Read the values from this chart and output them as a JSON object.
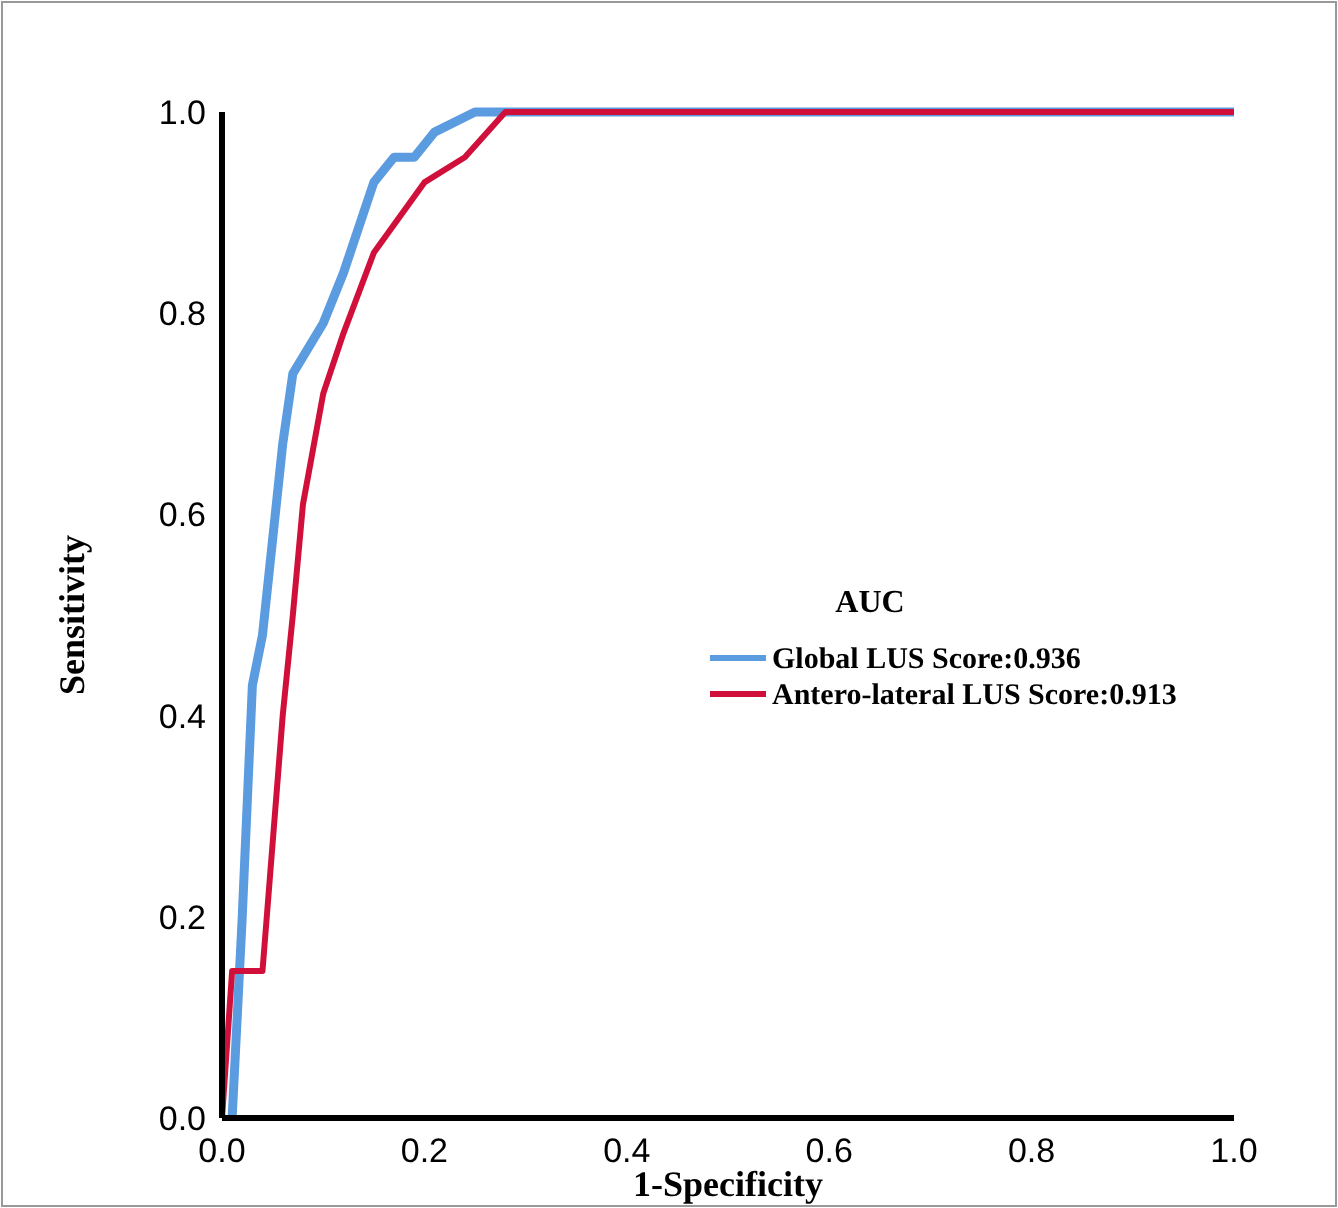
{
  "chart_data": {
    "type": "line",
    "xlabel": "1-Specificity",
    "ylabel": "Sensitivity",
    "legend_title": "AUC",
    "legend": "right",
    "xlim": [
      0,
      1
    ],
    "ylim": [
      0,
      1
    ],
    "xticks": [
      {
        "value": 0,
        "label": "0.0"
      },
      {
        "value": 0.2,
        "label": "0.2"
      },
      {
        "value": 0.4,
        "label": "0.4"
      },
      {
        "value": 0.6,
        "label": "0.6"
      },
      {
        "value": 0.8,
        "label": "0.8"
      },
      {
        "value": 1,
        "label": "1.0"
      }
    ],
    "yticks": [
      {
        "value": 0,
        "label": "0.0"
      },
      {
        "value": 0.2,
        "label": "0.2"
      },
      {
        "value": 0.4,
        "label": "0.4"
      },
      {
        "value": 0.6,
        "label": "0.6"
      },
      {
        "value": 0.8,
        "label": "0.8"
      },
      {
        "value": 1,
        "label": "1.0"
      }
    ],
    "grid": false,
    "marker": "none",
    "line_style": "solid",
    "series": [
      {
        "name": "Global LUS Score:0.936",
        "color": "#5b9be0",
        "x": [
          0.01,
          0.02,
          0.03,
          0.04,
          0.06,
          0.07,
          0.1,
          0.12,
          0.15,
          0.17,
          0.19,
          0.21,
          0.25,
          1
        ],
        "values": [
          0,
          0.2,
          0.43,
          0.48,
          0.67,
          0.74,
          0.79,
          0.84,
          0.93,
          0.955,
          0.955,
          0.98,
          1,
          1
        ]
      },
      {
        "name": "Antero-lateral LUS Score:0.913",
        "color": "#d0103a",
        "x": [
          0,
          0.01,
          0.04,
          0.06,
          0.07,
          0.08,
          0.1,
          0.12,
          0.15,
          0.2,
          0.24,
          0.28,
          1
        ],
        "values": [
          0,
          0.146,
          0.146,
          0.4,
          0.5,
          0.61,
          0.72,
          0.78,
          0.86,
          0.93,
          0.955,
          1,
          1
        ]
      }
    ]
  }
}
